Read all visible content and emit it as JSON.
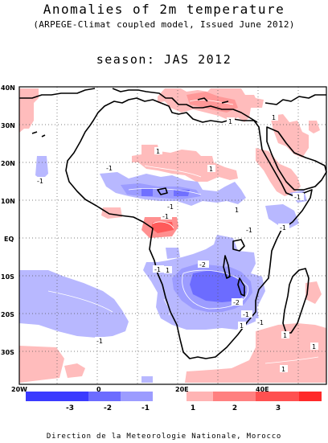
{
  "header": {
    "title": "Anomalies of 2m temperature",
    "subtitle": "(ARPEGE-Climat coupled model, Issued June 2012)",
    "season": "season: JAS 2012"
  },
  "map": {
    "lat_labels": [
      "40N",
      "30N",
      "20N",
      "10N",
      "EQ",
      "10S",
      "20S",
      "30S"
    ],
    "lon_labels": [
      "20W",
      "0",
      "20E",
      "40E"
    ],
    "contour_labels": [
      "1",
      "1",
      "1",
      "-1",
      "-1",
      "1",
      "-1",
      "-1",
      "-1",
      "1",
      "-1",
      "-1",
      "-2",
      "-1",
      "-2",
      "-1",
      "-1",
      "1",
      "1",
      "1",
      "-1",
      "1",
      "1"
    ]
  },
  "legend": {
    "labels": [
      "-3",
      "-2",
      "-1",
      "1",
      "2",
      "3"
    ],
    "colors": [
      "#3a3aff",
      "#6c6cff",
      "#9c9cff",
      "#b9b9ff",
      "#ffb4b4",
      "#ff8080",
      "#ff5050",
      "#ff2828"
    ]
  },
  "footer": "Direction de la Meteorologie Nationale, Morocco"
}
